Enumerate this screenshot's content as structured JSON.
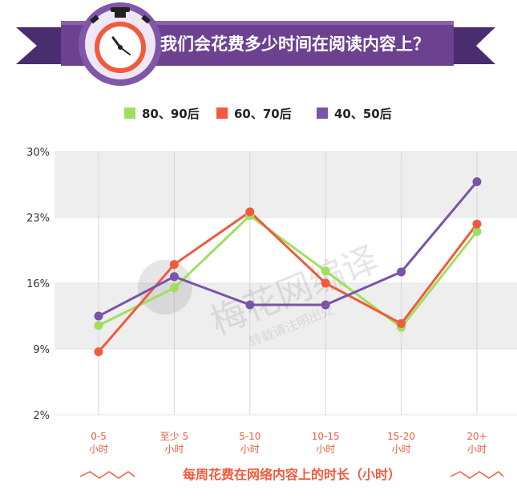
{
  "banner": {
    "title": "我们会花费多少时间在阅读内容上？",
    "icon": "stopwatch-icon"
  },
  "watermark": {
    "text": "梅花网编译",
    "subtext": "转载请注明出处"
  },
  "colors": {
    "banner_dark": "#4a2d6e",
    "banner_mid": "#6b4190",
    "banner_light": "#8a63ad",
    "series_green": "#9ee05e",
    "series_orange": "#f15a3f",
    "series_purple": "#7a54a6",
    "xlabel_color": "#f15a3f",
    "band": "#eeeeee"
  },
  "chart_data": {
    "type": "line",
    "categories": [
      "0-5\n小时",
      "至少 5\n小时",
      "5-10\n小时",
      "10-15\n小时",
      "15-20\n小时",
      "20+\n小时"
    ],
    "xlabel": "每周花费在网络内容上的时长（小时）",
    "ylabel": "",
    "yticks": [
      "30%",
      "23%",
      "16%",
      "9%",
      "2%"
    ],
    "ytick_values": [
      30,
      23,
      16,
      9,
      2
    ],
    "ylim": [
      2,
      30
    ],
    "grid": "horizontal bands",
    "legend_position": "top-center",
    "series": [
      {
        "name": "80、90后",
        "color": "#9ee05e",
        "values": [
          11.5,
          15.5,
          23.2,
          17.3,
          11.3,
          21.5
        ]
      },
      {
        "name": "60、70后",
        "color": "#f15a3f",
        "values": [
          8.7,
          18.0,
          23.6,
          16.0,
          11.7,
          22.3
        ]
      },
      {
        "name": "40、50后",
        "color": "#7a54a6",
        "values": [
          12.5,
          16.7,
          13.7,
          13.7,
          17.2,
          26.8
        ]
      }
    ]
  }
}
